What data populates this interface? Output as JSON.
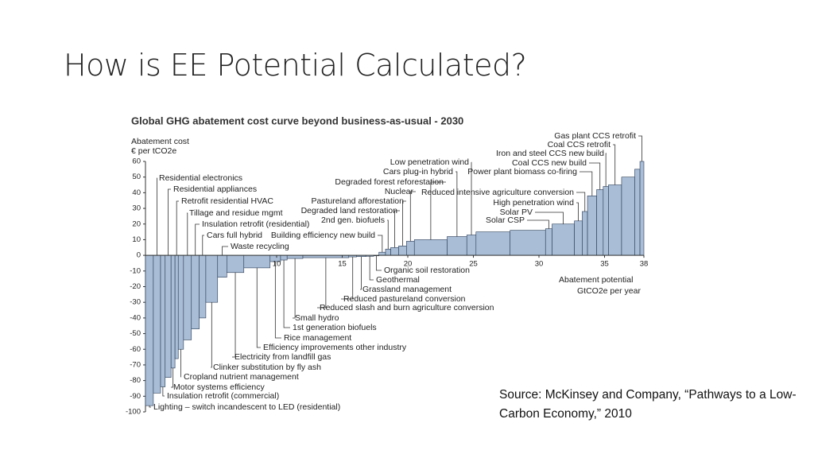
{
  "slide": {
    "title": "How is EE Potential Calculated?",
    "source": "Source: McKinsey and Company, “Pathways to a Low-Carbon Economy,” 2010"
  },
  "chart_data": {
    "type": "bar",
    "title": "Global GHG abatement cost curve beyond business-as-usual - 2030",
    "y_label": [
      "Abatement cost",
      "€ per tCO2e"
    ],
    "x_label": [
      "Abatement potential",
      "GtCO2e per year"
    ],
    "xlim": [
      0,
      38
    ],
    "xticks": [
      10,
      15,
      20,
      25,
      30,
      35,
      38
    ],
    "ylim": [
      -100,
      60
    ],
    "yticks": [
      -100,
      -90,
      -80,
      -70,
      -60,
      -50,
      -40,
      -30,
      -20,
      -10,
      0,
      10,
      20,
      30,
      40,
      50,
      60
    ],
    "color": "#a9bdd6",
    "edge_color": "#2a3c55",
    "bins": [
      0,
      0.6,
      1.15,
      1.5,
      1.95,
      2.25,
      2.5,
      2.9,
      3.5,
      4.1,
      4.6,
      5.5,
      6.2,
      7.5,
      9.5,
      10.3,
      10.8,
      12,
      15.5,
      16.1,
      16.8,
      17.4,
      17.8,
      18.3,
      18.7,
      19.3,
      19.9,
      20.5,
      23,
      24.5,
      25.2,
      27.8,
      30.5,
      31,
      32.7,
      33.3,
      33.7,
      34.4,
      34.9,
      35.3,
      36.3,
      37.3,
      37.7,
      38
    ],
    "values": [
      -96,
      -88,
      -84,
      -78,
      -72,
      -66,
      -60,
      -54,
      -47,
      -40,
      -30,
      -14,
      -11,
      -8,
      -4,
      -3,
      -2,
      -1.5,
      -1,
      -0.8,
      -0.6,
      -0.3,
      2,
      4,
      5,
      6,
      9,
      10,
      12,
      13,
      15,
      16,
      17,
      20,
      22,
      28,
      38,
      42,
      44,
      45,
      50,
      55,
      60
    ],
    "categories": [
      "Lighting – switch incandescent to LED (residential)",
      "Residential electronics",
      "Insulation retrofit (commercial)",
      "Residential appliances",
      "Motor systems efficiency",
      "Retrofit residential HVAC",
      "Cropland nutrient management",
      "Tillage and residue mgmt",
      "Insulation retrofit (residential)",
      "Cars full hybrid",
      "Clinker substitution by fly ash",
      "Waste recycling",
      "Electricity from landfill gas",
      "Efficiency improvements other industry",
      "Rice management",
      "1st generation biofuels",
      "Small hydro",
      "Reduced slash and burn agriculture conversion",
      "Reduced pastureland conversion",
      "Grassland management",
      "Geothermal",
      "Organic soil restoration",
      "Building efficiency new build",
      "2nd gen. biofuels",
      "Degraded land restoration",
      "Pastureland afforestation",
      "Nuclear",
      "Degraded forest reforestation",
      "Cars plug-in hybrid",
      "Low penetration wind",
      null,
      null,
      "Solar CSP",
      "Solar PV",
      "High penetration wind",
      "Reduced intensive agriculture conversion",
      "Power plant biomass co-firing",
      "Coal CCS new build",
      "Iron and steel CCS new build",
      "Coal CCS retrofit",
      null,
      null,
      "Gas plant CCS retrofit"
    ]
  }
}
